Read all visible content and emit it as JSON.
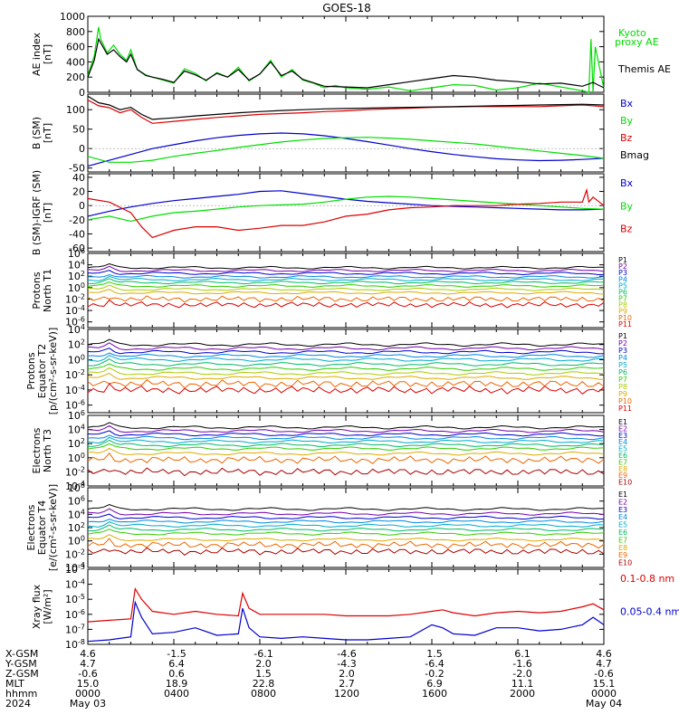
{
  "title": "GOES-18",
  "chart_data": [
    {
      "type": "line",
      "panel": "ae",
      "ylabel": "AE index [nT]",
      "ylim": [
        0,
        1000
      ],
      "yticks": [
        0,
        200,
        400,
        600,
        800,
        1000
      ],
      "legend": [
        "Kyoto proxy AE",
        "Themis AE"
      ],
      "series": [
        {
          "name": "Kyoto proxy AE",
          "color": "#00dd00",
          "x": [
            0,
            0.3,
            0.5,
            0.6,
            0.9,
            1.2,
            1.5,
            1.8,
            2.0,
            2.3,
            2.7,
            3.0,
            3.5,
            4.0,
            4.5,
            5.0,
            5.5,
            6.0,
            6.5,
            7.0,
            7.5,
            8.0,
            8.5,
            9.0,
            9.5,
            10.0,
            10.5,
            11.0,
            11.5,
            12.0,
            13.0,
            14.0,
            15.0,
            16.0,
            17.0,
            18.0,
            19.0,
            20.0,
            21.0,
            22.0,
            23.0,
            23.3,
            23.4,
            23.5,
            23.6,
            24.0
          ],
          "y": [
            220,
            480,
            860,
            700,
            520,
            620,
            500,
            420,
            560,
            300,
            230,
            200,
            160,
            120,
            310,
            250,
            150,
            260,
            200,
            330,
            150,
            240,
            420,
            200,
            300,
            160,
            120,
            60,
            90,
            60,
            40,
            70,
            20,
            60,
            100,
            90,
            30,
            60,
            120,
            70,
            20,
            0,
            700,
            0,
            600,
            50
          ]
        },
        {
          "name": "Themis AE",
          "color": "#000000",
          "x": [
            0,
            0.3,
            0.5,
            0.6,
            0.9,
            1.2,
            1.5,
            1.8,
            2.0,
            2.3,
            2.7,
            3.0,
            3.5,
            4.0,
            4.5,
            5.0,
            5.5,
            6.0,
            6.5,
            7.0,
            7.5,
            8.0,
            8.5,
            9.0,
            9.5,
            10.0,
            11.0,
            12.0,
            13.0,
            14.0,
            15.0,
            16.0,
            17.0,
            18.0,
            19.0,
            20.0,
            21.0,
            22.0,
            23.0,
            23.5,
            24.0
          ],
          "y": [
            200,
            420,
            700,
            650,
            500,
            560,
            470,
            400,
            500,
            300,
            220,
            200,
            170,
            130,
            280,
            230,
            160,
            250,
            200,
            300,
            160,
            240,
            400,
            220,
            280,
            170,
            80,
            70,
            60,
            100,
            140,
            180,
            220,
            200,
            160,
            140,
            110,
            120,
            80,
            130,
            60
          ]
        }
      ]
    },
    {
      "type": "line",
      "panel": "b-sm",
      "ylabel": "B (SM) [nT]",
      "ylim": [
        -60,
        140
      ],
      "yticks": [
        -50,
        0,
        50,
        100
      ],
      "legend": [
        "Bx",
        "By",
        "Bz",
        "Bmag"
      ],
      "series": [
        {
          "name": "Bx",
          "color": "#0000cc",
          "x": [
            0,
            1,
            2,
            3,
            4,
            5,
            6,
            7,
            8,
            9,
            10,
            11,
            12,
            13,
            14,
            15,
            16,
            17,
            18,
            19,
            20,
            21,
            22,
            23,
            24
          ],
          "y": [
            -45,
            -30,
            -15,
            0,
            10,
            20,
            28,
            34,
            38,
            40,
            38,
            33,
            26,
            18,
            9,
            0,
            -8,
            -15,
            -21,
            -26,
            -29,
            -31,
            -30,
            -28,
            -25
          ]
        },
        {
          "name": "By",
          "color": "#00dd00",
          "x": [
            0,
            1,
            2,
            3,
            4,
            5,
            6,
            7,
            8,
            9,
            10,
            11,
            12,
            13,
            14,
            15,
            16,
            17,
            18,
            19,
            20,
            21,
            22,
            23,
            24
          ],
          "y": [
            -20,
            -35,
            -35,
            -30,
            -20,
            -12,
            -5,
            3,
            10,
            17,
            22,
            26,
            28,
            29,
            27,
            24,
            20,
            16,
            12,
            6,
            0,
            -6,
            -12,
            -18,
            -25
          ]
        },
        {
          "name": "Bz",
          "color": "#dd0000",
          "x": [
            0,
            0.5,
            1,
            1.5,
            2,
            2.5,
            3,
            4,
            5,
            6,
            7,
            8,
            9,
            10,
            11,
            12,
            13,
            14,
            15,
            16,
            17,
            18,
            19,
            20,
            21,
            22,
            23,
            24
          ],
          "y": [
            125,
            110,
            105,
            92,
            100,
            80,
            65,
            70,
            75,
            80,
            84,
            88,
            90,
            92,
            95,
            97,
            100,
            102,
            104,
            106,
            107,
            108,
            108,
            108,
            108,
            110,
            112,
            108
          ]
        },
        {
          "name": "Bmag",
          "color": "#000000",
          "x": [
            0,
            0.5,
            1,
            1.5,
            2,
            2.5,
            3,
            4,
            5,
            6,
            7,
            8,
            9,
            10,
            11,
            12,
            13,
            14,
            15,
            16,
            17,
            18,
            19,
            20,
            21,
            22,
            23,
            24
          ],
          "y": [
            135,
            118,
            112,
            100,
            106,
            88,
            75,
            79,
            84,
            88,
            92,
            95,
            98,
            100,
            102,
            103,
            104,
            105,
            106,
            107,
            108,
            109,
            110,
            111,
            112,
            113,
            114,
            112
          ]
        }
      ]
    },
    {
      "type": "line",
      "panel": "b-igrf",
      "ylabel": "B (SM)-IGRF (SM) [nT]",
      "ylim": [
        -65,
        45
      ],
      "yticks": [
        -60,
        -40,
        -20,
        0,
        20,
        40
      ],
      "legend": [
        "Bx",
        "By",
        "Bz"
      ],
      "series": [
        {
          "name": "Bx",
          "color": "#0000cc",
          "x": [
            0,
            1,
            2,
            3,
            4,
            5,
            6,
            7,
            8,
            9,
            10,
            11,
            12,
            13,
            14,
            15,
            16,
            17,
            18,
            19,
            20,
            21,
            22,
            23,
            24
          ],
          "y": [
            -15,
            -8,
            -2,
            3,
            7,
            10,
            13,
            16,
            20,
            21,
            17,
            13,
            9,
            6,
            4,
            2,
            0,
            -1,
            -2,
            -3,
            -4,
            -5,
            -6,
            -6,
            -5
          ]
        },
        {
          "name": "By",
          "color": "#00dd00",
          "x": [
            0,
            1,
            2,
            3,
            4,
            5,
            6,
            7,
            8,
            9,
            10,
            11,
            12,
            13,
            14,
            15,
            16,
            17,
            18,
            19,
            20,
            21,
            22,
            23,
            24
          ],
          "y": [
            -20,
            -15,
            -22,
            -15,
            -10,
            -8,
            -5,
            -2,
            0,
            1,
            2,
            5,
            9,
            12,
            13,
            12,
            10,
            8,
            6,
            4,
            2,
            0,
            -2,
            -4,
            -5
          ]
        },
        {
          "name": "Bz",
          "color": "#dd0000",
          "x": [
            0,
            1,
            2,
            2.5,
            3,
            4,
            5,
            6,
            7,
            8,
            9,
            10,
            11,
            12,
            13,
            14,
            15,
            16,
            17,
            18,
            19,
            20,
            21,
            22,
            23,
            23.2,
            23.3,
            23.5,
            24
          ],
          "y": [
            10,
            5,
            -10,
            -30,
            -45,
            -35,
            -30,
            -30,
            -35,
            -32,
            -28,
            -28,
            -23,
            -15,
            -12,
            -6,
            -3,
            -2,
            0,
            0,
            0,
            2,
            3,
            5,
            5,
            22,
            5,
            12,
            0
          ]
        }
      ]
    },
    {
      "type": "line",
      "panel": "protons-t1",
      "ylabel": "Protons North T1",
      "yscale": "log",
      "ylim_exp": [
        -7,
        6
      ],
      "ytick_labels": [
        "10^-6",
        "10^-4",
        "10^-2",
        "10^0",
        "10^2",
        "10^4",
        "10^6"
      ],
      "legend": [
        "P1",
        "P2",
        "P3",
        "P4",
        "P5",
        "P6",
        "P7",
        "P8",
        "P9",
        "P10",
        "P11"
      ],
      "series_log_levels": [
        3.5,
        3.0,
        2.5,
        1.9,
        1.4,
        0.9,
        0.3,
        -0.3,
        -0.9,
        -2.0,
        -3.0
      ],
      "colors": [
        "#000000",
        "#7700aa",
        "#0000cc",
        "#0088dd",
        "#00aacc",
        "#00bb66",
        "#33cc00",
        "#aacc00",
        "#ddaa00",
        "#ee6600",
        "#dd0000"
      ]
    },
    {
      "type": "line",
      "panel": "protons-t2",
      "ylabel": "Protons Equator T2 [p/(cm^2-s-sr-keV)]",
      "yscale": "log",
      "ylim_exp": [
        -7,
        4
      ],
      "ytick_labels": [
        "10^-6",
        "10^-4",
        "10^-2",
        "10^0",
        "10^2",
        "10^4"
      ],
      "legend": [
        "P1",
        "P2",
        "P3",
        "P4",
        "P5",
        "P6",
        "P7",
        "P8",
        "P9",
        "P10",
        "P11"
      ],
      "series_log_levels": [
        2.0,
        1.5,
        1.0,
        0.5,
        0.0,
        -0.6,
        -1.2,
        -1.8,
        -2.4,
        -3.2,
        -4.0
      ],
      "colors": [
        "#000000",
        "#7700aa",
        "#0000cc",
        "#0088dd",
        "#00aacc",
        "#00bb66",
        "#33cc00",
        "#aacc00",
        "#ddaa00",
        "#ee6600",
        "#dd0000"
      ]
    },
    {
      "type": "line",
      "panel": "electrons-t3",
      "ylabel": "Electrons North T3",
      "yscale": "log",
      "ylim_exp": [
        -4,
        6
      ],
      "ytick_labels": [
        "10^-4",
        "10^-2",
        "10^0",
        "10^2",
        "10^4",
        "10^6"
      ],
      "legend": [
        "E1",
        "E2",
        "E3",
        "E4",
        "E5",
        "E6",
        "E7",
        "E8",
        "E9",
        "E10"
      ],
      "series_log_levels": [
        4.3,
        3.8,
        3.3,
        2.8,
        2.3,
        1.8,
        1.3,
        0.6,
        -0.3,
        -2.0
      ],
      "colors": [
        "#000000",
        "#7700aa",
        "#0000cc",
        "#0088dd",
        "#00aacc",
        "#00bb66",
        "#33cc00",
        "#ddaa00",
        "#ee6600",
        "#aa0000"
      ]
    },
    {
      "type": "line",
      "panel": "electrons-t4",
      "ylabel": "Electrons Equator T4 [e/(cm^2-s-sr-keV)]",
      "yscale": "log",
      "ylim_exp": [
        -4,
        8
      ],
      "ytick_labels": [
        "10^-4",
        "10^-2",
        "10^0",
        "10^2",
        "10^4",
        "10^6",
        "10^8"
      ],
      "legend": [
        "E1",
        "E2",
        "E3",
        "E4",
        "E5",
        "E6",
        "E7",
        "E8",
        "E9",
        "E10"
      ],
      "series_log_levels": [
        4.8,
        4.1,
        3.5,
        2.9,
        2.3,
        1.7,
        1.1,
        0.2,
        -0.6,
        -1.6
      ],
      "colors": [
        "#000000",
        "#7700aa",
        "#0000cc",
        "#0088dd",
        "#00aacc",
        "#00bb66",
        "#33cc00",
        "#ddaa00",
        "#ee6600",
        "#aa0000"
      ]
    },
    {
      "type": "line",
      "panel": "xray",
      "ylabel": "Xray flux [W/m^2]",
      "yscale": "log",
      "ylim_exp": [
        -8,
        -3
      ],
      "ytick_labels": [
        "10^-8",
        "10^-7",
        "10^-6",
        "10^-5",
        "10^-4",
        "10^-3"
      ],
      "legend": [
        "0.1-0.8 nm",
        "0.05-0.4 nm"
      ],
      "series": [
        {
          "name": "0.1-0.8 nm",
          "color": "#dd0000",
          "x": [
            0,
            1,
            2,
            2.2,
            2.5,
            3,
            4,
            5,
            6,
            7,
            7.2,
            7.5,
            8,
            9,
            10,
            11,
            12,
            13,
            14,
            15,
            16,
            16.5,
            17,
            18,
            19,
            20,
            21,
            22,
            23,
            23.5,
            24
          ],
          "y": [
            -6.5,
            -6.4,
            -6.3,
            -4.3,
            -5.0,
            -5.8,
            -6.0,
            -5.8,
            -6.0,
            -6.1,
            -4.6,
            -5.6,
            -6.0,
            -6.0,
            -6.0,
            -6.0,
            -6.1,
            -6.1,
            -6.1,
            -6.0,
            -5.8,
            -5.7,
            -5.9,
            -6.1,
            -5.9,
            -5.8,
            -5.9,
            -5.8,
            -5.5,
            -5.3,
            -5.7
          ]
        },
        {
          "name": "0.05-0.4 nm",
          "color": "#0000cc",
          "x": [
            0,
            1,
            2,
            2.2,
            2.5,
            3,
            4,
            5,
            6,
            7,
            7.2,
            7.5,
            8,
            9,
            10,
            11,
            12,
            13,
            14,
            15,
            16,
            16.5,
            17,
            18,
            19,
            20,
            21,
            22,
            23,
            23.5,
            24
          ],
          "y": [
            -7.8,
            -7.7,
            -7.5,
            -5.2,
            -6.2,
            -7.3,
            -7.2,
            -6.9,
            -7.4,
            -7.3,
            -5.6,
            -6.9,
            -7.5,
            -7.6,
            -7.5,
            -7.6,
            -7.7,
            -7.7,
            -7.6,
            -7.5,
            -6.7,
            -6.9,
            -7.3,
            -7.4,
            -6.9,
            -6.9,
            -7.1,
            -7.0,
            -6.7,
            -6.2,
            -6.7
          ]
        }
      ]
    }
  ],
  "bottom_table": {
    "labels": [
      "X-GSM",
      "Y-GSM",
      "Z-GSM",
      "MLT",
      "hhmm",
      "2024"
    ],
    "columns": [
      {
        "x": "4.6",
        "y": "4.7",
        "z": "-0.6",
        "mlt": "15.0",
        "hhmm": "0000",
        "date": "May 03"
      },
      {
        "x": "-1.5",
        "y": "6.4",
        "z": "0.6",
        "mlt": "18.9",
        "hhmm": "0400",
        "date": ""
      },
      {
        "x": "-6.1",
        "y": "2.0",
        "z": "1.5",
        "mlt": "22.8",
        "hhmm": "0800",
        "date": ""
      },
      {
        "x": "-4.6",
        "y": "-4.3",
        "z": "2.0",
        "mlt": "2.7",
        "hhmm": "1200",
        "date": ""
      },
      {
        "x": "1.5",
        "y": "-6.4",
        "z": "-0.2",
        "mlt": "6.9",
        "hhmm": "1600",
        "date": ""
      },
      {
        "x": "6.1",
        "y": "-1.6",
        "z": "-2.0",
        "mlt": "11.1",
        "hhmm": "2000",
        "date": ""
      },
      {
        "x": "4.6",
        "y": "4.7",
        "z": "-0.6",
        "mlt": "15.1",
        "hhmm": "0000",
        "date": "May 04"
      }
    ]
  }
}
